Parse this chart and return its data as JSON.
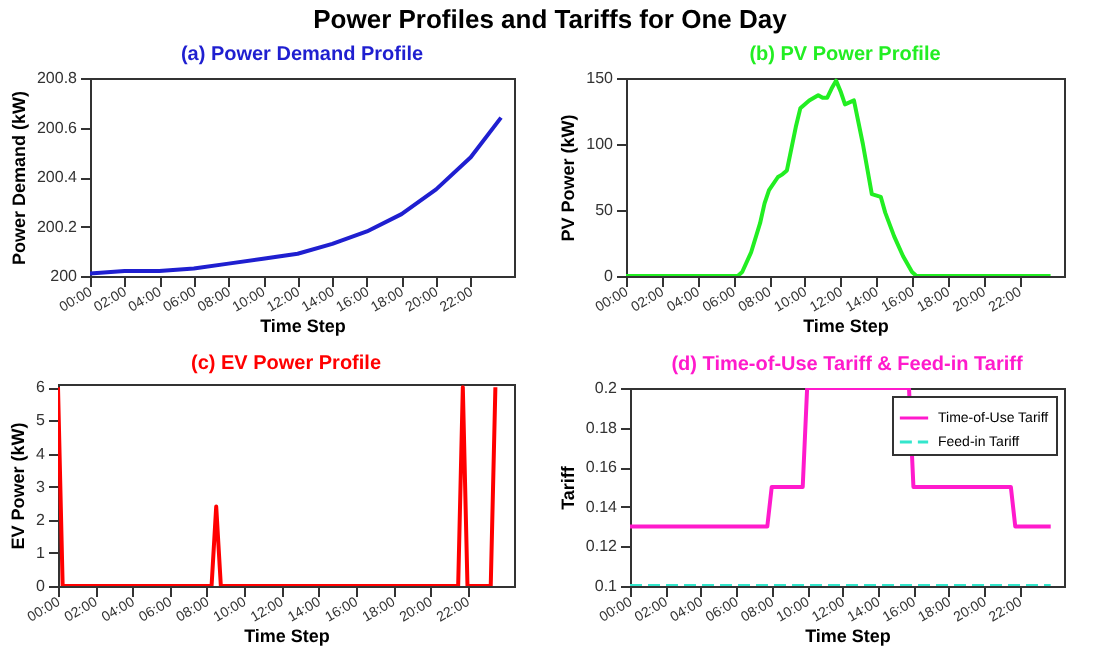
{
  "chart_data": [
    {
      "type": "other",
      "title": "Power Profiles and Tariffs for One Day"
    },
    {
      "type": "line",
      "title": "(a) Power Demand Profile",
      "xlabel": "Time Step",
      "ylabel": "Power Demand (kW)",
      "xlim": [
        0,
        24.5
      ],
      "xticks": [
        {
          "value": 0,
          "label": "00:00"
        },
        {
          "value": 2,
          "label": "02:00"
        },
        {
          "value": 4,
          "label": "04:00"
        },
        {
          "value": 6,
          "label": "06:00"
        },
        {
          "value": 8,
          "label": "08:00"
        },
        {
          "value": 10,
          "label": "10:00"
        },
        {
          "value": 12,
          "label": "12:00"
        },
        {
          "value": 14,
          "label": "14:00"
        },
        {
          "value": 16,
          "label": "16:00"
        },
        {
          "value": 18,
          "label": "18:00"
        },
        {
          "value": 20,
          "label": "20:00"
        },
        {
          "value": 22,
          "label": "22:00"
        }
      ],
      "ylim": [
        200,
        200.8
      ],
      "yticks": [
        {
          "value": 200,
          "label": "200"
        },
        200.2,
        200.4,
        200.6,
        200.8
      ],
      "series": [
        {
          "color": "#1f1fd0",
          "line_style": "solid",
          "x": [
            0,
            2,
            4,
            6,
            8,
            10,
            12,
            14,
            16,
            18,
            20,
            22,
            23.75
          ],
          "values": [
            200.01,
            200.02,
            200.02,
            200.03,
            200.05,
            200.07,
            200.09,
            200.13,
            200.18,
            200.25,
            200.35,
            200.48,
            200.64
          ]
        }
      ]
    },
    {
      "type": "line",
      "title": "(b) PV Power Profile",
      "xlabel": "Time Step",
      "ylabel": "PV Power (kW)",
      "xlim": [
        0,
        24.5
      ],
      "xticks": [
        {
          "value": 0,
          "label": "00:00"
        },
        {
          "value": 2,
          "label": "02:00"
        },
        {
          "value": 4,
          "label": "04:00"
        },
        {
          "value": 6,
          "label": "06:00"
        },
        {
          "value": 8,
          "label": "08:00"
        },
        {
          "value": 10,
          "label": "10:00"
        },
        {
          "value": 12,
          "label": "12:00"
        },
        {
          "value": 14,
          "label": "14:00"
        },
        {
          "value": 16,
          "label": "16:00"
        },
        {
          "value": 18,
          "label": "18:00"
        },
        {
          "value": 20,
          "label": "20:00"
        },
        {
          "value": 22,
          "label": "22:00"
        }
      ],
      "ylim": [
        0,
        150
      ],
      "yticks": [
        0,
        50,
        100,
        150
      ],
      "series": [
        {
          "color": "#22ee22",
          "line_style": "solid",
          "x": [
            0,
            6.25,
            6.5,
            7,
            7.5,
            7.75,
            8,
            8.5,
            8.75,
            9,
            9.5,
            9.75,
            10.25,
            10.75,
            11,
            11.25,
            11.5,
            11.75,
            12,
            12.25,
            12.75,
            13.25,
            13.75,
            14.25,
            14.5,
            15,
            15.5,
            16,
            16.25,
            23.75
          ],
          "values": [
            0,
            0,
            3,
            18,
            40,
            55,
            65,
            75,
            77,
            80,
            113,
            127,
            133,
            137,
            135,
            135,
            142,
            148,
            140,
            130,
            133,
            100,
            62,
            60,
            48,
            30,
            15,
            3,
            0,
            0
          ]
        }
      ]
    },
    {
      "type": "line",
      "title": "(c) EV Power Profile",
      "xlabel": "Time Step",
      "ylabel": "EV Power (kW)",
      "xlim": [
        0,
        24.5
      ],
      "xticks": [
        {
          "value": 0,
          "label": "00:00"
        },
        {
          "value": 2,
          "label": "02:00"
        },
        {
          "value": 4,
          "label": "04:00"
        },
        {
          "value": 6,
          "label": "06:00"
        },
        {
          "value": 8,
          "label": "08:00"
        },
        {
          "value": 10,
          "label": "10:00"
        },
        {
          "value": 12,
          "label": "12:00"
        },
        {
          "value": 14,
          "label": "14:00"
        },
        {
          "value": 16,
          "label": "16:00"
        },
        {
          "value": 18,
          "label": "18:00"
        },
        {
          "value": 20,
          "label": "20:00"
        },
        {
          "value": 22,
          "label": "22:00"
        }
      ],
      "ylim": [
        0,
        6.1
      ],
      "yticks": [
        0,
        1,
        2,
        3,
        4,
        5,
        6
      ],
      "series": [
        {
          "color": "#ff0000",
          "line_style": "solid",
          "x": [
            0,
            0.25,
            8.25,
            8.5,
            8.75,
            21.5,
            21.75,
            22,
            23.25,
            23.5
          ],
          "values": [
            6,
            0,
            0,
            2.4,
            0,
            0,
            6,
            0,
            0,
            6
          ]
        }
      ]
    },
    {
      "type": "line",
      "title": "(d) Time-of-Use Tariff & Feed-in Tariff",
      "xlabel": "Time Step",
      "ylabel": "Tariff",
      "xlim": [
        0,
        24.5
      ],
      "xticks": [
        {
          "value": 0,
          "label": "00:00"
        },
        {
          "value": 2,
          "label": "02:00"
        },
        {
          "value": 4,
          "label": "04:00"
        },
        {
          "value": 6,
          "label": "06:00"
        },
        {
          "value": 8,
          "label": "08:00"
        },
        {
          "value": 10,
          "label": "10:00"
        },
        {
          "value": 12,
          "label": "12:00"
        },
        {
          "value": 14,
          "label": "14:00"
        },
        {
          "value": 16,
          "label": "16:00"
        },
        {
          "value": 18,
          "label": "18:00"
        },
        {
          "value": 20,
          "label": "20:00"
        },
        {
          "value": 22,
          "label": "22:00"
        }
      ],
      "ylim": [
        0.1,
        0.2
      ],
      "yticks": [
        {
          "value": 0.1,
          "label": "0.1"
        },
        0.12,
        0.14,
        0.16,
        0.18,
        {
          "value": 0.2,
          "label": "0.2"
        }
      ],
      "legend": "top right",
      "series": [
        {
          "name": "Time-of-Use Tariff",
          "color": "#ff1acc",
          "line_style": "solid",
          "x": [
            0,
            7.75,
            8,
            9.75,
            10,
            15.75,
            16,
            21.5,
            21.75,
            23.75
          ],
          "values": [
            0.13,
            0.13,
            0.15,
            0.15,
            0.2,
            0.2,
            0.15,
            0.15,
            0.13,
            0.13
          ]
        },
        {
          "name": "Feed-in Tariff",
          "color": "#33e6cc",
          "line_style": "dashed",
          "x": [
            0,
            23.75
          ],
          "values": [
            0.1,
            0.1
          ]
        }
      ]
    }
  ]
}
